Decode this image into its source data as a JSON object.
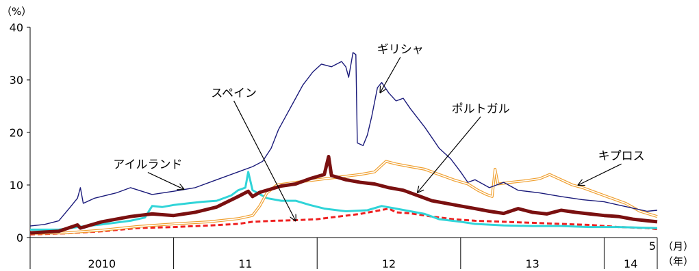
{
  "chart_data": {
    "type": "line",
    "title": "",
    "ylabel": "（%）",
    "ylim": [
      0,
      40
    ],
    "yticks": [
      0,
      10,
      20,
      30,
      40
    ],
    "x_range": [
      2010.0,
      2014.37
    ],
    "year_labels": [
      {
        "label": "2010",
        "start": 2010.0,
        "end": 2011.0
      },
      {
        "label": "11",
        "start": 2011.0,
        "end": 2012.0
      },
      {
        "label": "12",
        "start": 2012.0,
        "end": 2013.0
      },
      {
        "label": "13",
        "start": 2013.0,
        "end": 2014.0
      },
      {
        "label": "14",
        "start": 2014.0,
        "end": 2014.37
      }
    ],
    "month_tick": {
      "label": "5",
      "x": 2014.37
    },
    "month_unit": "（月）",
    "year_unit": "（年）",
    "grid": false,
    "legend": "none",
    "series": [
      {
        "name": "ギリシャ",
        "color": "#1a1a7a",
        "style": "thin",
        "points": [
          [
            2010.0,
            2.2
          ],
          [
            2010.1,
            2.5
          ],
          [
            2010.2,
            3.2
          ],
          [
            2010.28,
            5.8
          ],
          [
            2010.33,
            7.5
          ],
          [
            2010.35,
            9.5
          ],
          [
            2010.37,
            6.5
          ],
          [
            2010.45,
            7.5
          ],
          [
            2010.6,
            8.5
          ],
          [
            2010.7,
            9.5
          ],
          [
            2010.85,
            8.2
          ],
          [
            2011.0,
            8.8
          ],
          [
            2011.15,
            9.5
          ],
          [
            2011.3,
            11.0
          ],
          [
            2011.45,
            12.5
          ],
          [
            2011.55,
            13.5
          ],
          [
            2011.62,
            14.5
          ],
          [
            2011.68,
            17.0
          ],
          [
            2011.73,
            20.5
          ],
          [
            2011.78,
            23.0
          ],
          [
            2011.85,
            26.5
          ],
          [
            2011.9,
            29.0
          ],
          [
            2011.97,
            31.5
          ],
          [
            2012.03,
            33.0
          ],
          [
            2012.1,
            32.5
          ],
          [
            2012.17,
            33.5
          ],
          [
            2012.2,
            32.5
          ],
          [
            2012.22,
            30.5
          ],
          [
            2012.25,
            35.2
          ],
          [
            2012.27,
            34.8
          ],
          [
            2012.28,
            18.0
          ],
          [
            2012.32,
            17.5
          ],
          [
            2012.35,
            19.5
          ],
          [
            2012.38,
            23.0
          ],
          [
            2012.42,
            28.5
          ],
          [
            2012.45,
            29.5
          ],
          [
            2012.5,
            27.5
          ],
          [
            2012.55,
            26.0
          ],
          [
            2012.6,
            26.5
          ],
          [
            2012.65,
            24.5
          ],
          [
            2012.75,
            21.0
          ],
          [
            2012.85,
            17.0
          ],
          [
            2012.93,
            15.0
          ],
          [
            2013.0,
            12.5
          ],
          [
            2013.05,
            10.5
          ],
          [
            2013.1,
            11.0
          ],
          [
            2013.2,
            9.5
          ],
          [
            2013.3,
            10.5
          ],
          [
            2013.4,
            9.0
          ],
          [
            2013.55,
            8.5
          ],
          [
            2013.7,
            7.8
          ],
          [
            2013.85,
            7.2
          ],
          [
            2014.0,
            6.8
          ],
          [
            2014.1,
            6.2
          ],
          [
            2014.2,
            5.6
          ],
          [
            2014.3,
            5.0
          ],
          [
            2014.37,
            5.2
          ]
        ]
      },
      {
        "name": "キプロス",
        "color": "#f0a030",
        "style": "double",
        "points": [
          [
            2010.0,
            0.8
          ],
          [
            2010.25,
            0.9
          ],
          [
            2010.5,
            1.4
          ],
          [
            2010.75,
            2.1
          ],
          [
            2011.0,
            2.6
          ],
          [
            2011.25,
            3.0
          ],
          [
            2011.45,
            3.6
          ],
          [
            2011.55,
            4.2
          ],
          [
            2011.6,
            6.0
          ],
          [
            2011.65,
            8.5
          ],
          [
            2011.72,
            10.0
          ],
          [
            2011.85,
            10.5
          ],
          [
            2012.0,
            11.0
          ],
          [
            2012.15,
            11.5
          ],
          [
            2012.3,
            12.0
          ],
          [
            2012.4,
            12.5
          ],
          [
            2012.48,
            14.5
          ],
          [
            2012.55,
            14.0
          ],
          [
            2012.65,
            13.5
          ],
          [
            2012.75,
            13.0
          ],
          [
            2012.85,
            12.0
          ],
          [
            2012.95,
            11.0
          ],
          [
            2013.05,
            10.2
          ],
          [
            2013.12,
            9.0
          ],
          [
            2013.18,
            8.2
          ],
          [
            2013.22,
            7.8
          ],
          [
            2013.24,
            13.0
          ],
          [
            2013.26,
            10.2
          ],
          [
            2013.35,
            10.5
          ],
          [
            2013.45,
            10.8
          ],
          [
            2013.55,
            11.2
          ],
          [
            2013.62,
            12.0
          ],
          [
            2013.7,
            11.0
          ],
          [
            2013.78,
            10.0
          ],
          [
            2013.85,
            9.5
          ],
          [
            2013.95,
            8.5
          ],
          [
            2014.05,
            7.5
          ],
          [
            2014.15,
            6.5
          ],
          [
            2014.25,
            5.0
          ],
          [
            2014.37,
            4.0
          ]
        ]
      },
      {
        "name": "ポルトガル",
        "color": "#7a1010",
        "style": "thick",
        "points": [
          [
            2010.0,
            0.9
          ],
          [
            2010.2,
            1.2
          ],
          [
            2010.33,
            2.4
          ],
          [
            2010.35,
            1.8
          ],
          [
            2010.5,
            3.0
          ],
          [
            2010.7,
            4.0
          ],
          [
            2010.85,
            4.5
          ],
          [
            2011.0,
            4.2
          ],
          [
            2011.15,
            4.8
          ],
          [
            2011.3,
            5.8
          ],
          [
            2011.45,
            7.8
          ],
          [
            2011.52,
            8.8
          ],
          [
            2011.55,
            7.8
          ],
          [
            2011.6,
            8.6
          ],
          [
            2011.75,
            9.8
          ],
          [
            2011.85,
            10.2
          ],
          [
            2011.95,
            11.2
          ],
          [
            2012.05,
            12.0
          ],
          [
            2012.08,
            15.4
          ],
          [
            2012.1,
            11.8
          ],
          [
            2012.2,
            11.0
          ],
          [
            2012.3,
            10.5
          ],
          [
            2012.4,
            10.2
          ],
          [
            2012.5,
            9.5
          ],
          [
            2012.6,
            9.0
          ],
          [
            2012.7,
            8.0
          ],
          [
            2012.8,
            7.0
          ],
          [
            2012.9,
            6.5
          ],
          [
            2013.0,
            6.0
          ],
          [
            2013.1,
            5.5
          ],
          [
            2013.2,
            5.0
          ],
          [
            2013.3,
            4.6
          ],
          [
            2013.4,
            5.5
          ],
          [
            2013.5,
            4.8
          ],
          [
            2013.6,
            4.5
          ],
          [
            2013.7,
            5.2
          ],
          [
            2013.8,
            4.8
          ],
          [
            2013.9,
            4.5
          ],
          [
            2014.0,
            4.2
          ],
          [
            2014.1,
            4.0
          ],
          [
            2014.2,
            3.5
          ],
          [
            2014.3,
            3.2
          ],
          [
            2014.37,
            3.0
          ]
        ]
      },
      {
        "name": "アイルランド",
        "color": "#30d4d8",
        "style": "medium",
        "points": [
          [
            2010.0,
            1.5
          ],
          [
            2010.2,
            1.5
          ],
          [
            2010.33,
            2.0
          ],
          [
            2010.5,
            2.5
          ],
          [
            2010.7,
            3.2
          ],
          [
            2010.8,
            3.8
          ],
          [
            2010.85,
            6.0
          ],
          [
            2010.92,
            5.8
          ],
          [
            2011.0,
            6.2
          ],
          [
            2011.1,
            6.5
          ],
          [
            2011.2,
            6.8
          ],
          [
            2011.3,
            7.0
          ],
          [
            2011.4,
            8.0
          ],
          [
            2011.45,
            9.0
          ],
          [
            2011.5,
            9.5
          ],
          [
            2011.52,
            12.5
          ],
          [
            2011.55,
            9.0
          ],
          [
            2011.65,
            7.5
          ],
          [
            2011.75,
            7.0
          ],
          [
            2011.85,
            7.0
          ],
          [
            2011.95,
            6.2
          ],
          [
            2012.05,
            5.5
          ],
          [
            2012.2,
            5.0
          ],
          [
            2012.35,
            5.2
          ],
          [
            2012.45,
            6.0
          ],
          [
            2012.55,
            5.5
          ],
          [
            2012.65,
            5.0
          ],
          [
            2012.75,
            4.5
          ],
          [
            2012.85,
            3.5
          ],
          [
            2013.0,
            3.0
          ],
          [
            2013.1,
            2.6
          ],
          [
            2013.3,
            2.3
          ],
          [
            2013.5,
            2.2
          ],
          [
            2013.7,
            2.2
          ],
          [
            2013.9,
            2.0
          ],
          [
            2014.1,
            2.0
          ],
          [
            2014.37,
            1.8
          ]
        ]
      },
      {
        "name": "スペイン",
        "color": "#ee2020",
        "style": "dashed",
        "points": [
          [
            2010.0,
            0.6
          ],
          [
            2010.25,
            0.8
          ],
          [
            2010.5,
            1.2
          ],
          [
            2010.75,
            1.8
          ],
          [
            2011.0,
            2.0
          ],
          [
            2011.25,
            2.3
          ],
          [
            2011.45,
            2.6
          ],
          [
            2011.55,
            3.0
          ],
          [
            2011.7,
            3.2
          ],
          [
            2011.85,
            3.3
          ],
          [
            2012.0,
            3.5
          ],
          [
            2012.15,
            4.0
          ],
          [
            2012.3,
            4.5
          ],
          [
            2012.4,
            5.0
          ],
          [
            2012.5,
            5.5
          ],
          [
            2012.55,
            4.8
          ],
          [
            2012.65,
            4.6
          ],
          [
            2012.8,
            4.0
          ],
          [
            2012.95,
            3.5
          ],
          [
            2013.1,
            3.2
          ],
          [
            2013.3,
            3.0
          ],
          [
            2013.5,
            2.8
          ],
          [
            2013.7,
            2.6
          ],
          [
            2013.9,
            2.4
          ],
          [
            2014.1,
            2.0
          ],
          [
            2014.3,
            1.8
          ],
          [
            2014.37,
            1.6
          ]
        ]
      }
    ],
    "annotations": [
      {
        "text": "ギリシャ",
        "series": "ギリシャ",
        "from": [
          2012.58,
          34.3
        ],
        "to": [
          2012.44,
          27.6
        ]
      },
      {
        "text": "スペイン",
        "series": "スペイン",
        "from": [
          2011.42,
          26.0
        ],
        "to": [
          2011.85,
          3.2
        ]
      },
      {
        "text": "ポルトガル",
        "series": "ポルトガル",
        "from": [
          2013.14,
          23.0
        ],
        "to": [
          2012.7,
          8.6
        ]
      },
      {
        "text": "アイルランド",
        "series": "アイルランド",
        "from": [
          2010.82,
          12.4
        ],
        "to": [
          2011.07,
          9.2
        ]
      },
      {
        "text": "キプロス",
        "series": "キプロス",
        "from": [
          2014.12,
          14.0
        ],
        "to": [
          2013.82,
          10.0
        ]
      }
    ]
  }
}
